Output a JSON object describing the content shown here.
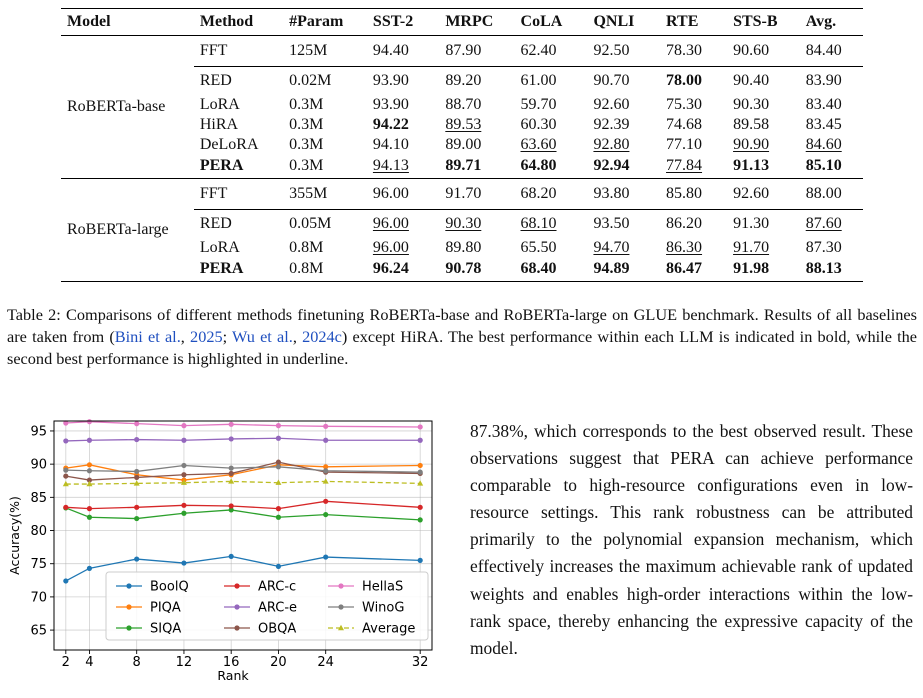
{
  "table": {
    "headers": [
      "Model",
      "Method",
      "#Param",
      "SST-2",
      "MRPC",
      "CoLA",
      "QNLI",
      "RTE",
      "STS-B",
      "Avg."
    ],
    "groups": [
      {
        "model": "RoBERTa-base",
        "rows": [
          {
            "method": "FFT",
            "param": "125M",
            "vals": [
              "94.40",
              "87.90",
              "62.40",
              "92.50",
              "78.30",
              "90.60",
              "84.40"
            ],
            "bold": [],
            "under": [],
            "rule_after": true
          },
          {
            "method": "RED",
            "param": "0.02M",
            "vals": [
              "93.90",
              "89.20",
              "61.00",
              "90.70",
              "78.00",
              "90.40",
              "83.90"
            ],
            "bold": [
              4
            ],
            "under": []
          },
          {
            "method": "LoRA",
            "param": "0.3M",
            "vals": [
              "93.90",
              "88.70",
              "59.70",
              "92.60",
              "75.30",
              "90.30",
              "83.40"
            ],
            "bold": [],
            "under": []
          },
          {
            "method": "HiRA",
            "param": "0.3M",
            "vals": [
              "94.22",
              "89.53",
              "60.30",
              "92.39",
              "74.68",
              "89.58",
              "83.45"
            ],
            "bold": [
              0
            ],
            "under": [
              1
            ]
          },
          {
            "method": "DeLoRA",
            "param": "0.3M",
            "vals": [
              "94.10",
              "89.00",
              "63.60",
              "92.80",
              "77.10",
              "90.90",
              "84.60"
            ],
            "bold": [],
            "under": [
              2,
              3,
              5,
              6
            ]
          },
          {
            "method": "PERA",
            "param": "0.3M",
            "vals": [
              "94.13",
              "89.71",
              "64.80",
              "92.94",
              "77.84",
              "91.13",
              "85.10"
            ],
            "bold": [
              1,
              2,
              3,
              5,
              6
            ],
            "under": [
              0,
              4
            ],
            "method_bold": true
          }
        ]
      },
      {
        "model": "RoBERTa-large",
        "rows": [
          {
            "method": "FFT",
            "param": "355M",
            "vals": [
              "96.00",
              "91.70",
              "68.20",
              "93.80",
              "85.80",
              "92.60",
              "88.00"
            ],
            "bold": [],
            "under": [],
            "rule_after": true
          },
          {
            "method": "RED",
            "param": "0.05M",
            "vals": [
              "96.00",
              "90.30",
              "68.10",
              "93.50",
              "86.20",
              "91.30",
              "87.60"
            ],
            "bold": [],
            "under": [
              0,
              1,
              2,
              6
            ]
          },
          {
            "method": "LoRA",
            "param": "0.8M",
            "vals": [
              "96.00",
              "89.80",
              "65.50",
              "94.70",
              "86.30",
              "91.70",
              "87.30"
            ],
            "bold": [],
            "under": [
              0,
              3,
              4,
              5
            ]
          },
          {
            "method": "PERA",
            "param": "0.8M",
            "vals": [
              "96.24",
              "90.78",
              "68.40",
              "94.89",
              "86.47",
              "91.98",
              "88.13"
            ],
            "bold": [
              0,
              1,
              2,
              3,
              4,
              5,
              6
            ],
            "under": [],
            "method_bold": true
          }
        ]
      }
    ]
  },
  "caption": {
    "lead": "Table 2: Comparisons of different methods finetuning RoBERTa-base and RoBERTa-large on GLUE benchmark. Results of all baselines are taken from (",
    "cite1": "Bini et al.",
    "sep1": ", ",
    "cite1_year": "2025",
    "sep2": "; ",
    "cite2": "Wu et al.",
    "sep3": ", ",
    "cite2_year": "2024c",
    "tail": ") except HiRA. The best performance within each LLM is indicated in bold, while the second best performance is highlighted in underline."
  },
  "body_text": "87.38%, which corresponds to the best observed result. These observations suggest that PERA can achieve performance comparable to high-resource configurations even in low-resource settings. This rank robustness can be attributed primarily to the polynomial expansion mechanism, which effec­tively increases the maximum achievable rank of updated weights and enables high-order interac­tions within the low-rank space, thereby enhancing the expressive capacity of the model.",
  "chart_data": {
    "type": "line",
    "x": [
      2,
      4,
      8,
      12,
      16,
      20,
      24,
      32
    ],
    "xlabel": "Rank",
    "ylabel": "Accuracy(%)",
    "xticks": [
      "2",
      "4",
      "8",
      "12",
      "16",
      "20",
      "24",
      "32"
    ],
    "yticks": [
      "65",
      "70",
      "75",
      "80",
      "85",
      "90",
      "95"
    ],
    "ylim": [
      62,
      96.5
    ],
    "grid": true,
    "legend_position": "lower-center",
    "series": [
      {
        "name": "BoolQ",
        "color": "#1f77b4",
        "marker": "circle",
        "dashed": false,
        "values": [
          72.4,
          74.3,
          75.7,
          75.1,
          76.1,
          74.6,
          76.0,
          75.5
        ]
      },
      {
        "name": "PIQA",
        "color": "#ff7f0e",
        "marker": "circle",
        "dashed": false,
        "values": [
          89.4,
          89.9,
          88.4,
          87.6,
          88.4,
          89.9,
          89.6,
          89.8
        ]
      },
      {
        "name": "SIQA",
        "color": "#2ca02c",
        "marker": "circle",
        "dashed": false,
        "values": [
          83.4,
          82.0,
          81.8,
          82.6,
          83.1,
          82.0,
          82.4,
          81.6
        ]
      },
      {
        "name": "ARC-c",
        "color": "#d62728",
        "marker": "circle",
        "dashed": false,
        "values": [
          83.5,
          83.3,
          83.5,
          83.8,
          83.7,
          83.3,
          84.4,
          83.5
        ]
      },
      {
        "name": "ARC-e",
        "color": "#9467bd",
        "marker": "circle",
        "dashed": false,
        "values": [
          93.5,
          93.6,
          93.7,
          93.6,
          93.8,
          93.9,
          93.6,
          93.6
        ]
      },
      {
        "name": "OBQA",
        "color": "#8c564b",
        "marker": "circle",
        "dashed": false,
        "values": [
          88.2,
          87.6,
          88.0,
          88.4,
          88.6,
          90.3,
          88.8,
          88.6
        ]
      },
      {
        "name": "HellaS",
        "color": "#e377c2",
        "marker": "circle",
        "dashed": false,
        "values": [
          96.2,
          96.4,
          96.1,
          95.8,
          96.0,
          95.8,
          95.7,
          95.6
        ]
      },
      {
        "name": "WinoG",
        "color": "#7f7f7f",
        "marker": "circle",
        "dashed": false,
        "values": [
          89.1,
          89.0,
          88.9,
          89.8,
          89.4,
          89.6,
          89.0,
          88.8
        ]
      },
      {
        "name": "Average",
        "color": "#bcbd22",
        "marker": "triangle",
        "dashed": true,
        "values": [
          87.0,
          87.0,
          87.1,
          87.2,
          87.4,
          87.2,
          87.4,
          87.1
        ]
      }
    ]
  }
}
